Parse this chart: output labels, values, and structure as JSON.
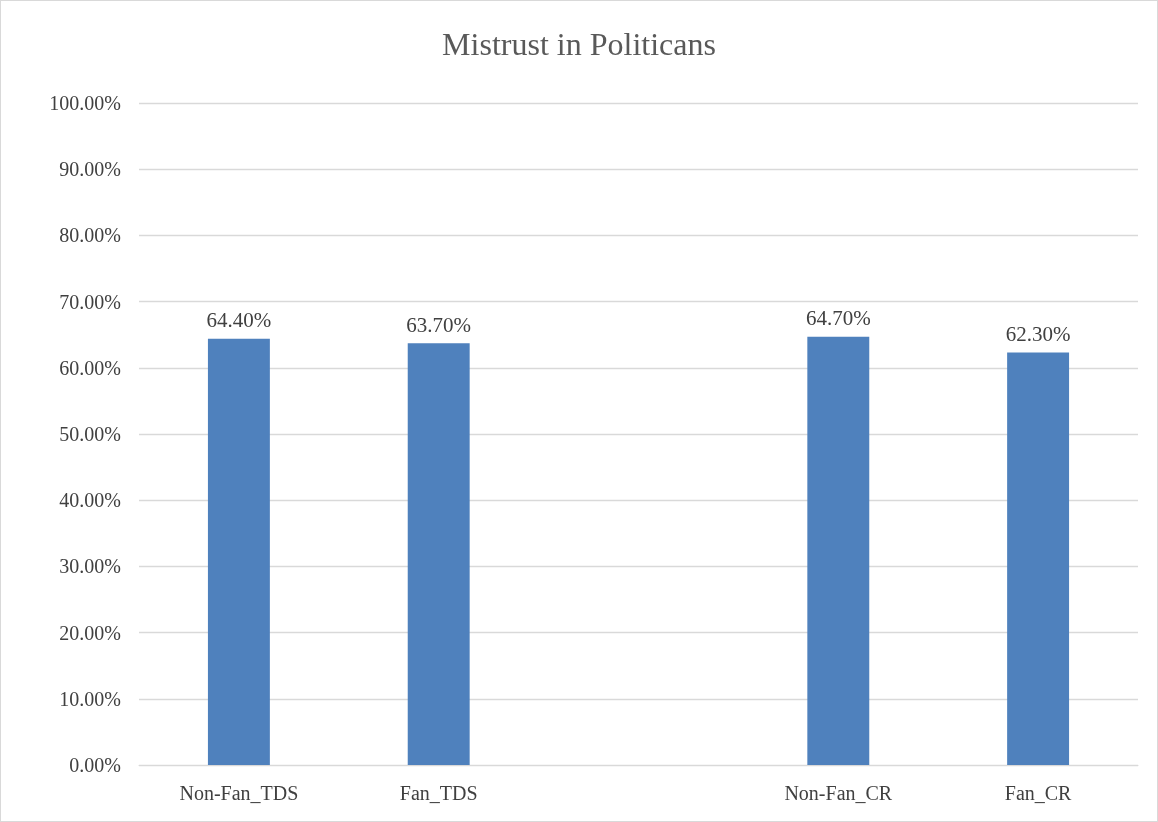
{
  "chart_data": {
    "type": "bar",
    "title": "Mistrust in Politicans",
    "categories": [
      "Non-Fan_TDS",
      "Fan_TDS",
      null,
      "Non-Fan_CR",
      "Fan_CR"
    ],
    "values": [
      64.4,
      63.7,
      null,
      64.7,
      62.3
    ],
    "value_labels": [
      "64.40%",
      "63.70%",
      null,
      "64.70%",
      "62.30%"
    ],
    "color": "#4f81bd",
    "ylim": [
      0,
      100
    ],
    "yticks": [
      {
        "value": 0,
        "label": "0.00%"
      },
      {
        "value": 10,
        "label": "10.00%"
      },
      {
        "value": 20,
        "label": "20.00%"
      },
      {
        "value": 30,
        "label": "30.00%"
      },
      {
        "value": 40,
        "label": "40.00%"
      },
      {
        "value": 50,
        "label": "50.00%"
      },
      {
        "value": 60,
        "label": "60.00%"
      },
      {
        "value": 70,
        "label": "70.00%"
      },
      {
        "value": 80,
        "label": "80.00%"
      },
      {
        "value": 90,
        "label": "90.00%"
      },
      {
        "value": 100,
        "label": "100.00%"
      }
    ],
    "grid": "y"
  }
}
